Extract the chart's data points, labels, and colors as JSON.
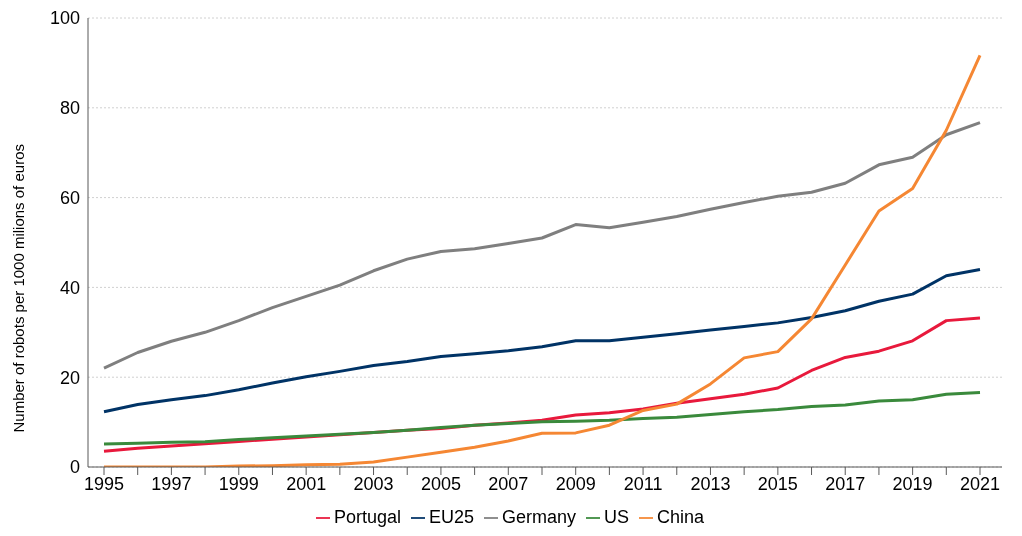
{
  "chart_data": {
    "type": "line",
    "ylabel": "Number of  robots per 1000 milions of euros",
    "categories": [
      "1995",
      null,
      "1997",
      null,
      "1999",
      null,
      "2001",
      null,
      "2003",
      null,
      "2005",
      null,
      "2007",
      null,
      "2009",
      null,
      "2011",
      null,
      "2013",
      null,
      "2015",
      null,
      "2017",
      null,
      "2019",
      null,
      "2021"
    ],
    "series": [
      {
        "name": "Portugal",
        "color": "#e8193c",
        "values": [
          3.5,
          4.2,
          4.7,
          5.2,
          5.7,
          6.2,
          6.7,
          7.2,
          7.7,
          8.2,
          8.6,
          9.3,
          9.8,
          10.4,
          11.6,
          12.1,
          12.9,
          14.2,
          15.2,
          16.2,
          17.6,
          21.5,
          24.4,
          25.8,
          28.1,
          32.6,
          33.2
        ]
      },
      {
        "name": "EU25",
        "color": "#003366",
        "values": [
          12.3,
          13.9,
          15,
          15.9,
          17.2,
          18.7,
          20.1,
          21.3,
          22.6,
          23.5,
          24.6,
          25.2,
          25.9,
          26.8,
          28.1,
          28.1,
          28.9,
          29.7,
          30.5,
          31.3,
          32.1,
          33.3,
          34.8,
          36.9,
          38.5,
          42.6,
          44
        ]
      },
      {
        "name": "Germany",
        "color": "#7f7f7f",
        "values": [
          22,
          25.5,
          28,
          30,
          32.6,
          35.5,
          38,
          40.5,
          43.7,
          46.3,
          48,
          48.6,
          49.8,
          51,
          54,
          53.3,
          54.5,
          55.8,
          57.4,
          58.9,
          60.3,
          61.2,
          63.2,
          67.3,
          69,
          74,
          76.7
        ]
      },
      {
        "name": "US",
        "color": "#3a8a3c",
        "values": [
          5.1,
          5.3,
          5.5,
          5.6,
          6.1,
          6.5,
          6.9,
          7.3,
          7.7,
          8.2,
          8.8,
          9.3,
          9.7,
          10.1,
          10.2,
          10.4,
          10.8,
          11.1,
          11.7,
          12.3,
          12.8,
          13.5,
          13.8,
          14.7,
          15,
          16.2,
          16.6
        ]
      },
      {
        "name": "China",
        "color": "#f58733",
        "values": [
          0,
          0,
          0,
          0,
          0.2,
          0.3,
          0.5,
          0.6,
          1.1,
          2.2,
          3.3,
          4.4,
          5.8,
          7.5,
          7.6,
          9.3,
          12.6,
          14,
          18.5,
          24.3,
          25.7,
          33,
          45,
          57,
          62,
          75,
          91.7
        ]
      }
    ],
    "ylim": [
      0,
      100
    ],
    "yticks": [
      0,
      20,
      40,
      60,
      80,
      100
    ],
    "grid": "y",
    "legend": "bottom",
    "marker": "none",
    "line_style": "solid"
  }
}
